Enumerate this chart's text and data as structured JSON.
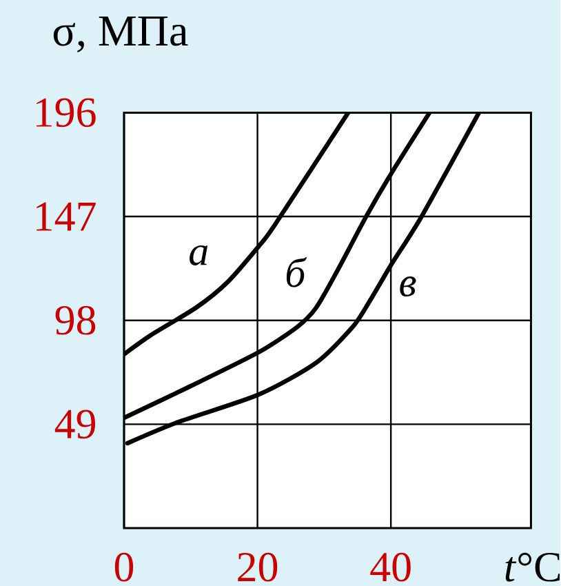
{
  "chart_data": {
    "type": "line",
    "xlabel": "*t*°C",
    "ylabel": "σ, МПа",
    "xlim": [
      0,
      61
    ],
    "xticks": [
      0,
      20,
      40
    ],
    "ylim": [
      0,
      196
    ],
    "yticks": [
      49,
      98,
      147,
      196
    ],
    "grid": true,
    "legend": false,
    "marker": "none",
    "line_style": "solid",
    "series": [
      {
        "name": "а",
        "color": "#000000",
        "x": [
          0,
          4,
          10.8,
          15.5,
          20.2,
          22.6,
          33.6
        ],
        "values": [
          82,
          91,
          104,
          116,
          133,
          143,
          196
        ]
      },
      {
        "name": "б",
        "color": "#000000",
        "x": [
          0,
          10,
          20.2,
          26,
          28.8,
          31.9,
          36.3,
          40,
          45.8
        ],
        "values": [
          52,
          67,
          83,
          95,
          104,
          121,
          147,
          167,
          196
        ]
      },
      {
        "name": "в",
        "color": "#000000",
        "x": [
          0.5,
          8.1,
          20.2,
          28.8,
          34.3,
          37,
          40,
          44.6,
          53.2
        ],
        "values": [
          40,
          50,
          63,
          78,
          95,
          108,
          124,
          147,
          196
        ]
      }
    ]
  }
}
